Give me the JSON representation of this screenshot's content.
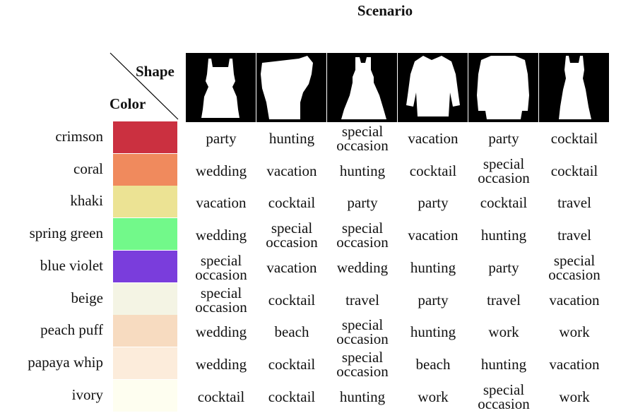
{
  "title": "Scenario",
  "corner": {
    "shape_label": "Shape",
    "color_label": "Color"
  },
  "shapes": [
    {
      "name": "sleeveless-short-dress",
      "icon": "dress-silhouette-icon"
    },
    {
      "name": "one-shoulder-dress",
      "icon": "dress-silhouette-icon"
    },
    {
      "name": "flared-dress",
      "icon": "dress-silhouette-icon"
    },
    {
      "name": "long-sleeve-dress",
      "icon": "dress-silhouette-icon"
    },
    {
      "name": "jacket-dress",
      "icon": "dress-silhouette-icon"
    },
    {
      "name": "long-slim-dress",
      "icon": "dress-silhouette-icon"
    }
  ],
  "rows": [
    {
      "color": "crimson",
      "hex": "#cb3040",
      "cells": [
        "party",
        "hunting",
        "special occasion",
        "vacation",
        "party",
        "cocktail"
      ]
    },
    {
      "color": "coral",
      "hex": "#f08a5d",
      "cells": [
        "wedding",
        "vacation",
        "hunting",
        "cocktail",
        "special occasion",
        "cocktail"
      ]
    },
    {
      "color": "khaki",
      "hex": "#ece394",
      "cells": [
        "vacation",
        "cocktail",
        "party",
        "party",
        "cocktail",
        "travel"
      ]
    },
    {
      "color": "spring green",
      "hex": "#72f98a",
      "cells": [
        "wedding",
        "special occasion",
        "special occasion",
        "vacation",
        "hunting",
        "travel"
      ]
    },
    {
      "color": "blue violet",
      "hex": "#7a3ddc",
      "cells": [
        "special occasion",
        "vacation",
        "wedding",
        "hunting",
        "party",
        "special occasion"
      ]
    },
    {
      "color": "beige",
      "hex": "#f4f4e4",
      "cells": [
        "special occasion",
        "cocktail",
        "travel",
        "party",
        "travel",
        "vacation"
      ]
    },
    {
      "color": "peach puff",
      "hex": "#f7dbc0",
      "cells": [
        "wedding",
        "beach",
        "special occasion",
        "hunting",
        "work",
        "work"
      ]
    },
    {
      "color": "papaya whip",
      "hex": "#fcecdb",
      "cells": [
        "wedding",
        "cocktail",
        "special occasion",
        "beach",
        "hunting",
        "vacation"
      ]
    },
    {
      "color": "ivory",
      "hex": "#fefef0",
      "cells": [
        "cocktail",
        "cocktail",
        "hunting",
        "work",
        "special occasion",
        "work"
      ]
    }
  ]
}
